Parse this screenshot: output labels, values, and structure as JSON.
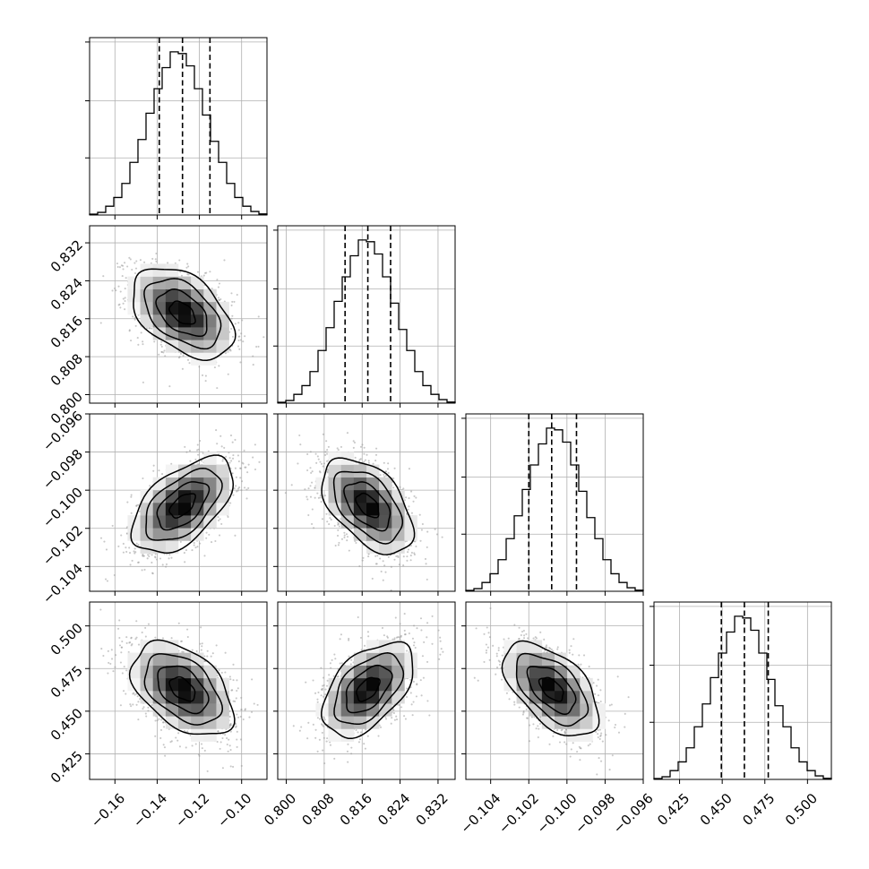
{
  "chart_data": {
    "type": "corner",
    "grid": true,
    "quantiles": [
      0.16,
      0.5,
      0.84
    ],
    "parameters": [
      {
        "range": [
          -0.172,
          -0.088
        ],
        "ticks": [
          -0.16,
          -0.14,
          -0.12,
          -0.1
        ],
        "tick_labels": [
          "−0.16",
          "−0.14",
          "−0.12",
          "−0.10"
        ],
        "median": -0.128,
        "q16": -0.139,
        "q84": -0.115,
        "hist": [
          0.005,
          0.015,
          0.05,
          0.1,
          0.18,
          0.3,
          0.43,
          0.58,
          0.72,
          0.84,
          0.93,
          0.92,
          0.85,
          0.72,
          0.57,
          0.42,
          0.3,
          0.18,
          0.1,
          0.05,
          0.02,
          0.006
        ]
      },
      {
        "range": [
          0.7982,
          0.8356
        ],
        "ticks": [
          0.8,
          0.808,
          0.816,
          0.824,
          0.832
        ],
        "tick_labels": [
          "0.800",
          "0.808",
          "0.816",
          "0.824",
          "0.832"
        ],
        "median": 0.8172,
        "q16": 0.8124,
        "q84": 0.822,
        "hist": [
          0.005,
          0.015,
          0.05,
          0.1,
          0.18,
          0.3,
          0.43,
          0.58,
          0.72,
          0.84,
          0.93,
          0.92,
          0.85,
          0.72,
          0.57,
          0.42,
          0.3,
          0.18,
          0.1,
          0.05,
          0.02,
          0.006
        ]
      },
      {
        "range": [
          -0.1053,
          -0.096
        ],
        "ticks": [
          -0.104,
          -0.102,
          -0.1,
          -0.098,
          -0.096
        ],
        "tick_labels": [
          "−0.104",
          "−0.102",
          "−0.100",
          "−0.098",
          "−0.096"
        ],
        "median": -0.1008,
        "q16": -0.102,
        "q84": -0.0995,
        "hist": [
          0.005,
          0.015,
          0.05,
          0.1,
          0.18,
          0.3,
          0.43,
          0.58,
          0.72,
          0.84,
          0.93,
          0.92,
          0.85,
          0.72,
          0.57,
          0.42,
          0.3,
          0.18,
          0.1,
          0.05,
          0.02,
          0.006
        ]
      },
      {
        "range": [
          0.41,
          0.514
        ],
        "ticks": [
          0.425,
          0.45,
          0.475,
          0.5
        ],
        "tick_labels": [
          "0.425",
          "0.450",
          "0.475",
          "0.500"
        ],
        "median": 0.463,
        "q16": 0.4495,
        "q84": 0.477,
        "hist": [
          0.005,
          0.015,
          0.05,
          0.1,
          0.18,
          0.3,
          0.43,
          0.58,
          0.72,
          0.84,
          0.93,
          0.92,
          0.85,
          0.72,
          0.57,
          0.42,
          0.3,
          0.18,
          0.1,
          0.05,
          0.02,
          0.006
        ]
      }
    ],
    "correlations": [
      {
        "row": 1,
        "col": 0,
        "rho": -0.45
      },
      {
        "row": 2,
        "col": 0,
        "rho": 0.55
      },
      {
        "row": 2,
        "col": 1,
        "rho": -0.5
      },
      {
        "row": 3,
        "col": 0,
        "rho": -0.45
      },
      {
        "row": 3,
        "col": 1,
        "rho": 0.5
      },
      {
        "row": 3,
        "col": 2,
        "rho": -0.55
      }
    ],
    "contour_levels_sigma": [
      0.5,
      1.0,
      1.5,
      2.0
    ]
  }
}
